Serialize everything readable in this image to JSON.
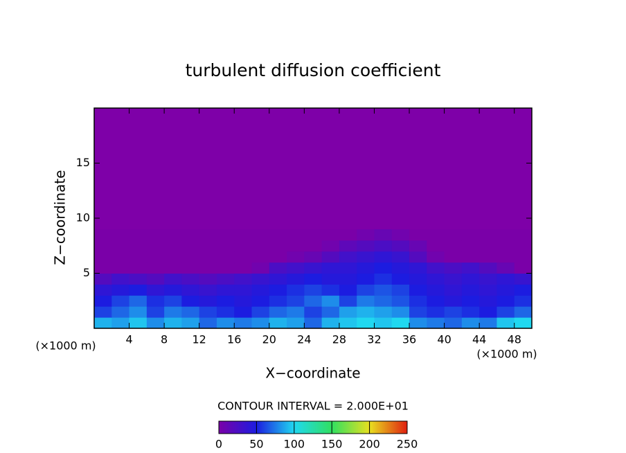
{
  "chart_data": {
    "type": "heatmap",
    "title": "turbulent diffusion coefficient",
    "x_label": "X−coordinate",
    "y_label": "Z−coordinate",
    "x_unit_label": "(×1000 m)",
    "y_unit_label": "(×1000 m)",
    "colorbar_title": "CONTOUR INTERVAL = 2.000E+01",
    "xlim": [
      0,
      50
    ],
    "ylim": [
      0,
      20
    ],
    "xticks": [
      4,
      8,
      12,
      16,
      20,
      24,
      28,
      32,
      36,
      40,
      44,
      48
    ],
    "yticks": [
      5,
      10,
      15
    ],
    "clim": [
      0,
      250
    ],
    "cticks": [
      0,
      50,
      100,
      150,
      200,
      250
    ],
    "colorscale": [
      "#7a00a8",
      "#1c1ce0",
      "#20d8f0",
      "#30e060",
      "#e8e020",
      "#e02010"
    ],
    "background": "#7e00a8",
    "x": [
      1,
      3,
      5,
      7,
      9,
      11,
      13,
      15,
      17,
      19,
      21,
      23,
      25,
      27,
      29,
      31,
      33,
      35,
      37,
      39,
      41,
      43,
      45,
      47,
      49
    ],
    "y": [
      0.5,
      1.5,
      2.5,
      3.5,
      4.5,
      5.5,
      6.5,
      7.5,
      8.5
    ],
    "values": [
      [
        90,
        85,
        95,
        80,
        90,
        85,
        70,
        80,
        75,
        80,
        90,
        85,
        70,
        90,
        95,
        100,
        95,
        100,
        80,
        75,
        70,
        80,
        75,
        95,
        100
      ],
      [
        60,
        70,
        80,
        60,
        75,
        70,
        60,
        55,
        50,
        60,
        70,
        75,
        60,
        70,
        85,
        90,
        85,
        80,
        60,
        55,
        60,
        55,
        50,
        60,
        70
      ],
      [
        50,
        60,
        70,
        55,
        60,
        50,
        45,
        50,
        45,
        50,
        55,
        60,
        70,
        80,
        60,
        75,
        70,
        65,
        55,
        50,
        45,
        50,
        45,
        50,
        55
      ],
      [
        40,
        45,
        50,
        40,
        45,
        40,
        35,
        40,
        40,
        45,
        50,
        55,
        60,
        55,
        50,
        60,
        65,
        60,
        50,
        45,
        40,
        45,
        40,
        45,
        50
      ],
      [
        20,
        30,
        25,
        20,
        30,
        25,
        20,
        25,
        30,
        35,
        40,
        45,
        50,
        45,
        45,
        50,
        55,
        50,
        45,
        40,
        35,
        40,
        35,
        40,
        35
      ],
      [
        0,
        0,
        0,
        0,
        0,
        0,
        0,
        0,
        0,
        5,
        25,
        30,
        35,
        40,
        40,
        45,
        50,
        45,
        40,
        30,
        25,
        30,
        20,
        10,
        0
      ],
      [
        0,
        0,
        0,
        0,
        0,
        0,
        0,
        0,
        0,
        0,
        0,
        5,
        10,
        20,
        30,
        35,
        40,
        35,
        20,
        5,
        0,
        0,
        0,
        0,
        0
      ],
      [
        0,
        0,
        0,
        0,
        0,
        0,
        0,
        0,
        0,
        0,
        0,
        0,
        0,
        5,
        15,
        20,
        25,
        20,
        10,
        0,
        0,
        0,
        0,
        0,
        0
      ],
      [
        0,
        0,
        0,
        0,
        0,
        0,
        0,
        0,
        0,
        0,
        0,
        0,
        0,
        0,
        0,
        5,
        10,
        5,
        0,
        0,
        0,
        0,
        0,
        0,
        0
      ]
    ]
  }
}
